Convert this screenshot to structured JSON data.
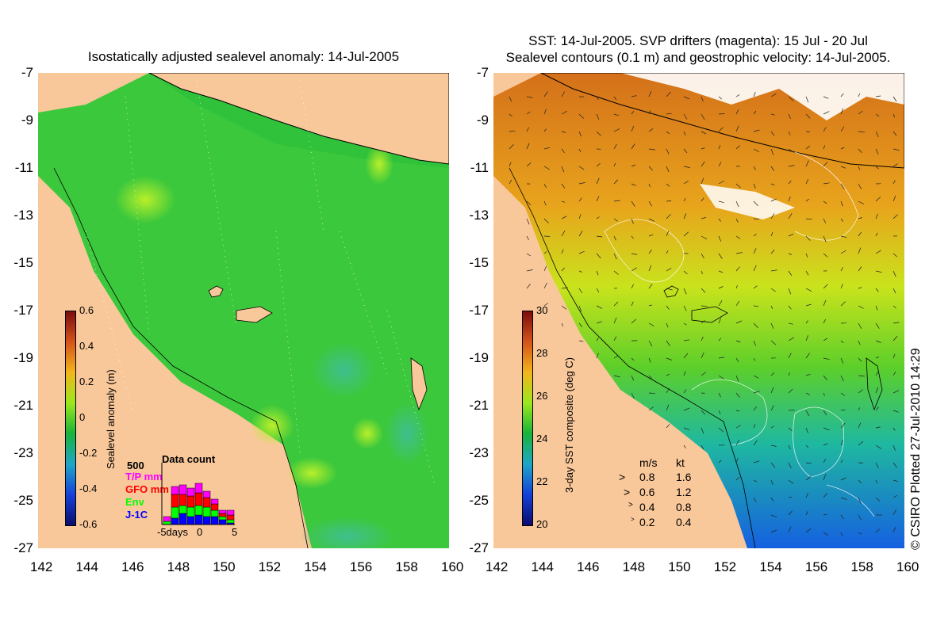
{
  "left_panel": {
    "title": "Isostatically adjusted sealevel anomaly: 14-Jul-2005",
    "colorbar": {
      "label": "Sealevel anomaly (m)",
      "ticks": [
        "0.6",
        "0.4",
        "0.2",
        "0",
        "-0.2",
        "-0.4",
        "-0.6"
      ],
      "colors": [
        "#7a0d0d",
        "#d4541a",
        "#f3b51c",
        "#9be81c",
        "#18b33a",
        "#1fa6c8",
        "#1540d8",
        "#0c0c6e"
      ]
    },
    "data_count": {
      "title": "Data count",
      "max_label": "500",
      "series": [
        {
          "name": "T/P mm",
          "color": "#ff00ff"
        },
        {
          "name": "GFO mm",
          "color": "#ff0000"
        },
        {
          "name": "Env",
          "color": "#00ff00"
        },
        {
          "name": "J-1C",
          "color": "#0000ff"
        }
      ],
      "x_labels": [
        "-5days",
        "0",
        "5"
      ]
    }
  },
  "right_panel": {
    "title_line1": "SST: 14-Jul-2005. SVP drifters (magenta): 15 Jul - 20 Jul",
    "title_line2": "Sealevel contours (0.1 m) and geostrophic velocity: 14-Jul-2005.",
    "colorbar": {
      "label": "3-day SST composite (deg C)",
      "ticks": [
        "30",
        "28",
        "26",
        "24",
        "22",
        "20"
      ],
      "colors": [
        "#7a0d0d",
        "#d4541a",
        "#f3b51c",
        "#9be81c",
        "#18b33a",
        "#1fa6c8",
        "#1540d8",
        "#0c0c6e"
      ]
    },
    "velocity_legend": {
      "header_ms": "m/s",
      "header_kt": "kt",
      "rows": [
        {
          "ms": "0.8",
          "kt": "1.6"
        },
        {
          "ms": "0.6",
          "kt": "1.2"
        },
        {
          "ms": "0.4",
          "kt": "0.8"
        },
        {
          "ms": "0.2",
          "kt": "0.4"
        }
      ]
    }
  },
  "axes": {
    "x_ticks": [
      "142",
      "144",
      "146",
      "148",
      "150",
      "152",
      "154",
      "156",
      "158",
      "160"
    ],
    "y_ticks": [
      "-7",
      "-9",
      "-11",
      "-13",
      "-15",
      "-17",
      "-19",
      "-21",
      "-23",
      "-25",
      "-27"
    ]
  },
  "map_colors": {
    "land": "#f9c89a",
    "sea_green": "#3cc83c",
    "sea_light": "#9be81c",
    "sea_cyan": "#1fb89a",
    "warm_orange": "#d4701a",
    "cold_blue": "#1560e0"
  },
  "copyright": "© CSIRO Plotted 27-Jul-2010 14:29"
}
